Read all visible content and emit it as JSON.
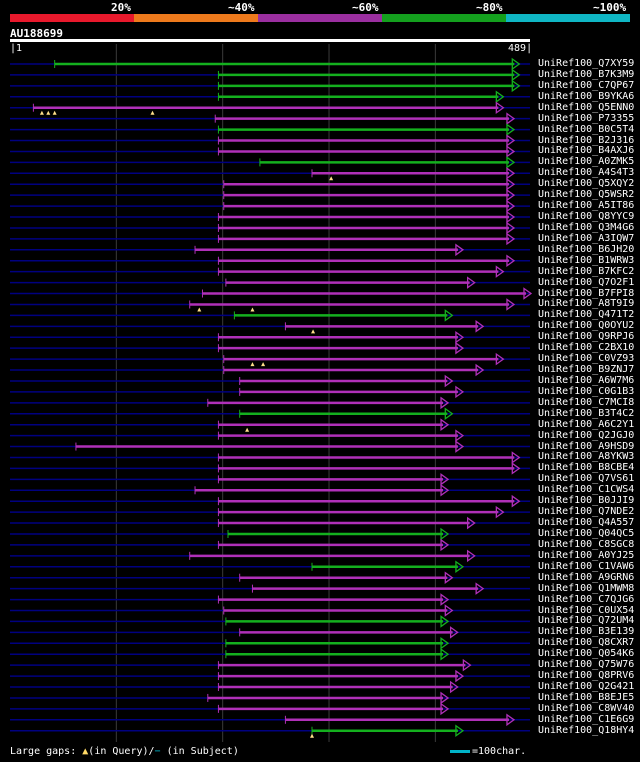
{
  "legend": {
    "labels": [
      "20%",
      "~40%",
      "~60%",
      "~80%",
      "~100%"
    ],
    "colors": [
      "#e8192c",
      "#ee7a1c",
      "#9b2fa0",
      "#14a01e",
      "#0fb6c4"
    ]
  },
  "query": {
    "id": "AU188699",
    "start": "1",
    "end": "489",
    "length": 489
  },
  "colors": {
    "purple": "#b030b8",
    "green": "#14b01e",
    "gap": "#000080",
    "grid": "#3a3a3a",
    "bg": "#000000"
  },
  "hits": [
    {
      "name": "UniRef100_Q7XY59",
      "qs": 42,
      "qe": 478,
      "color": "green"
    },
    {
      "name": "UniRef100_B7K3M9",
      "qs": 196,
      "qe": 478,
      "color": "green"
    },
    {
      "name": "UniRef100_C7QP67",
      "qs": 196,
      "qe": 478,
      "color": "green"
    },
    {
      "name": "UniRef100_B9YKA6",
      "qs": 196,
      "qe": 463,
      "color": "green"
    },
    {
      "name": "UniRef100_Q5ENN0",
      "qs": 22,
      "qe": 463,
      "color": "purple",
      "markers": [
        30,
        36,
        42,
        134
      ]
    },
    {
      "name": "UniRef100_P73355",
      "qs": 193,
      "qe": 473,
      "color": "purple"
    },
    {
      "name": "UniRef100_B0C5T4",
      "qs": 196,
      "qe": 473,
      "color": "green"
    },
    {
      "name": "UniRef100_B2J316",
      "qs": 196,
      "qe": 473,
      "color": "purple"
    },
    {
      "name": "UniRef100_B4AXJ6",
      "qs": 196,
      "qe": 473,
      "color": "purple"
    },
    {
      "name": "UniRef100_A0ZMK5",
      "qs": 235,
      "qe": 473,
      "color": "green"
    },
    {
      "name": "UniRef100_A4S4T3",
      "qs": 284,
      "qe": 473,
      "color": "purple",
      "markers": [
        302
      ]
    },
    {
      "name": "UniRef100_Q5XQY2",
      "qs": 201,
      "qe": 473,
      "color": "purple"
    },
    {
      "name": "UniRef100_Q5WSR2",
      "qs": 201,
      "qe": 473,
      "color": "purple"
    },
    {
      "name": "UniRef100_A5IT86",
      "qs": 201,
      "qe": 473,
      "color": "purple"
    },
    {
      "name": "UniRef100_Q8YYC9",
      "qs": 196,
      "qe": 473,
      "color": "purple"
    },
    {
      "name": "UniRef100_Q3M4G6",
      "qs": 196,
      "qe": 473,
      "color": "purple"
    },
    {
      "name": "UniRef100_A3IQW7",
      "qs": 196,
      "qe": 473,
      "color": "purple"
    },
    {
      "name": "UniRef100_B6JH20",
      "qs": 174,
      "qe": 425,
      "color": "purple"
    },
    {
      "name": "UniRef100_B1WRW3",
      "qs": 196,
      "qe": 473,
      "color": "purple"
    },
    {
      "name": "UniRef100_B7KFC2",
      "qs": 196,
      "qe": 463,
      "color": "purple"
    },
    {
      "name": "UniRef100_Q7O2F1",
      "qs": 203,
      "qe": 436,
      "color": "purple"
    },
    {
      "name": "UniRef100_B7FPI8",
      "qs": 181,
      "qe": 489,
      "color": "purple"
    },
    {
      "name": "UniRef100_A8T9I9",
      "qs": 169,
      "qe": 473,
      "color": "purple",
      "markers": [
        178,
        228
      ]
    },
    {
      "name": "UniRef100_Q471T2",
      "qs": 211,
      "qe": 415,
      "color": "green"
    },
    {
      "name": "UniRef100_Q0OYU2",
      "qs": 259,
      "qe": 444,
      "color": "purple",
      "markers": [
        285
      ]
    },
    {
      "name": "UniRef100_Q9RPJ6",
      "qs": 196,
      "qe": 425,
      "color": "purple"
    },
    {
      "name": "UniRef100_C2BX10",
      "qs": 196,
      "qe": 425,
      "color": "purple"
    },
    {
      "name": "UniRef100_C0VZ93",
      "qs": 201,
      "qe": 463,
      "color": "purple",
      "markers": [
        228,
        238
      ]
    },
    {
      "name": "UniRef100_B9ZNJ7",
      "qs": 201,
      "qe": 444,
      "color": "purple"
    },
    {
      "name": "UniRef100_A6W7M6",
      "qs": 216,
      "qe": 415,
      "color": "purple"
    },
    {
      "name": "UniRef100_C0G1B3",
      "qs": 216,
      "qe": 425,
      "color": "purple"
    },
    {
      "name": "UniRef100_C7MCI8",
      "qs": 186,
      "qe": 411,
      "color": "purple"
    },
    {
      "name": "UniRef100_B3T4C2",
      "qs": 216,
      "qe": 415,
      "color": "green"
    },
    {
      "name": "UniRef100_A6C2Y1",
      "qs": 196,
      "qe": 411,
      "color": "purple",
      "markers": [
        223
      ]
    },
    {
      "name": "UniRef100_Q2JGJ0",
      "qs": 196,
      "qe": 425,
      "color": "purple"
    },
    {
      "name": "UniRef100_A9HSD9",
      "qs": 62,
      "qe": 425,
      "color": "purple"
    },
    {
      "name": "UniRef100_A8YKW3",
      "qs": 196,
      "qe": 478,
      "color": "purple"
    },
    {
      "name": "UniRef100_B8CBE4",
      "qs": 196,
      "qe": 478,
      "color": "purple"
    },
    {
      "name": "UniRef100_Q7VS61",
      "qs": 196,
      "qe": 411,
      "color": "purple"
    },
    {
      "name": "UniRef100_C1CWS4",
      "qs": 174,
      "qe": 411,
      "color": "purple"
    },
    {
      "name": "UniRef100_B0JJI9",
      "qs": 196,
      "qe": 478,
      "color": "purple"
    },
    {
      "name": "UniRef100_Q7NDE2",
      "qs": 196,
      "qe": 463,
      "color": "purple"
    },
    {
      "name": "UniRef100_Q4A557",
      "qs": 196,
      "qe": 436,
      "color": "purple"
    },
    {
      "name": "UniRef100_Q04QC5",
      "qs": 205,
      "qe": 411,
      "color": "green"
    },
    {
      "name": "UniRef100_C8SGC8",
      "qs": 196,
      "qe": 411,
      "color": "purple"
    },
    {
      "name": "UniRef100_A0YJ25",
      "qs": 169,
      "qe": 436,
      "color": "purple"
    },
    {
      "name": "UniRef100_C1VAW6",
      "qs": 284,
      "qe": 425,
      "color": "green"
    },
    {
      "name": "UniRef100_A9GRN6",
      "qs": 216,
      "qe": 415,
      "color": "purple"
    },
    {
      "name": "UniRef100_Q1MWM8",
      "qs": 228,
      "qe": 444,
      "color": "purple"
    },
    {
      "name": "UniRef100_C7QJG6",
      "qs": 196,
      "qe": 411,
      "color": "purple"
    },
    {
      "name": "UniRef100_C0UX54",
      "qs": 201,
      "qe": 415,
      "color": "purple"
    },
    {
      "name": "UniRef100_Q72UM4",
      "qs": 203,
      "qe": 411,
      "color": "green"
    },
    {
      "name": "UniRef100_B3E139",
      "qs": 216,
      "qe": 420,
      "color": "purple"
    },
    {
      "name": "UniRef100_Q8CXR7",
      "qs": 203,
      "qe": 411,
      "color": "green"
    },
    {
      "name": "UniRef100_Q054K6",
      "qs": 203,
      "qe": 411,
      "color": "green"
    },
    {
      "name": "UniRef100_Q75W76",
      "qs": 196,
      "qe": 432,
      "color": "purple"
    },
    {
      "name": "UniRef100_Q8PRV6",
      "qs": 196,
      "qe": 425,
      "color": "purple"
    },
    {
      "name": "UniRef100_Q2G421",
      "qs": 196,
      "qe": 420,
      "color": "purple"
    },
    {
      "name": "UniRef100_B8EJE5",
      "qs": 186,
      "qe": 411,
      "color": "purple"
    },
    {
      "name": "UniRef100_C8WV40",
      "qs": 196,
      "qe": 411,
      "color": "purple"
    },
    {
      "name": "UniRef100_C1E6G9",
      "qs": 259,
      "qe": 473,
      "color": "purple"
    },
    {
      "name": "UniRef100_Q18HY4",
      "qs": 284,
      "qe": 425,
      "color": "green",
      "markers": [
        284
      ]
    }
  ],
  "footer": {
    "large_gaps_prefix": "Large gaps:",
    "in_query": "(in Query)/",
    "in_subject": "(in Subject)",
    "scale_label": "=100char."
  }
}
